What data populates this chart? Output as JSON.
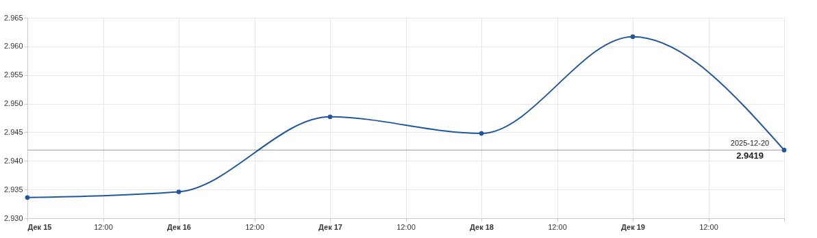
{
  "chart_data": {
    "type": "line",
    "x": [
      "2025-12-15",
      "2025-12-16",
      "2025-12-17",
      "2025-12-18",
      "2025-12-19",
      "2025-12-20"
    ],
    "series": [
      {
        "color": "#1f56a0",
        "values": [
          2.9336,
          2.9346,
          2.9477,
          2.9448,
          2.9617,
          2.9419
        ]
      }
    ],
    "xlim": [
      "2025-12-15",
      "2025-12-20"
    ],
    "xticks": [
      {
        "value": "2025-12-15",
        "label": "Дек 15"
      },
      {
        "value": "2025-12-15T12:00",
        "label": "12:00"
      },
      {
        "value": "2025-12-16",
        "label": "Дек 16"
      },
      {
        "value": "2025-12-16T12:00",
        "label": "12:00"
      },
      {
        "value": "2025-12-17",
        "label": "Дек 17"
      },
      {
        "value": "2025-12-17T12:00",
        "label": "12:00"
      },
      {
        "value": "2025-12-18",
        "label": "Дек 18"
      },
      {
        "value": "2025-12-18T12:00",
        "label": "12:00"
      },
      {
        "value": "2025-12-19",
        "label": "Дек 19"
      },
      {
        "value": "2025-12-19T12:00",
        "label": "12:00"
      },
      {
        "value": "2025-12-20",
        "label": null
      }
    ],
    "ylim": [
      2.93,
      2.965
    ],
    "yticks": [
      {
        "value": 2.93,
        "label": "2.930"
      },
      {
        "value": 2.935,
        "label": "2.935"
      },
      {
        "value": 2.94,
        "label": "2.940"
      },
      {
        "value": 2.945,
        "label": "2.945"
      },
      {
        "value": 2.95,
        "label": "2.950"
      },
      {
        "value": 2.955,
        "label": "2.955"
      },
      {
        "value": 2.96,
        "label": "2.960"
      },
      {
        "value": 2.965,
        "label": "2.965"
      }
    ],
    "ref_lines": [
      {
        "axis": "y",
        "value": 2.9419,
        "color": "#999999"
      }
    ],
    "annotations": [
      {
        "text": "2025-12-20",
        "x": "2025-12-20",
        "y": 2.9419
      },
      {
        "text": "2.9419",
        "x": "2025-12-20",
        "y": 2.9419
      }
    ],
    "grid": true,
    "marker": "circle",
    "line_style": "solid"
  }
}
